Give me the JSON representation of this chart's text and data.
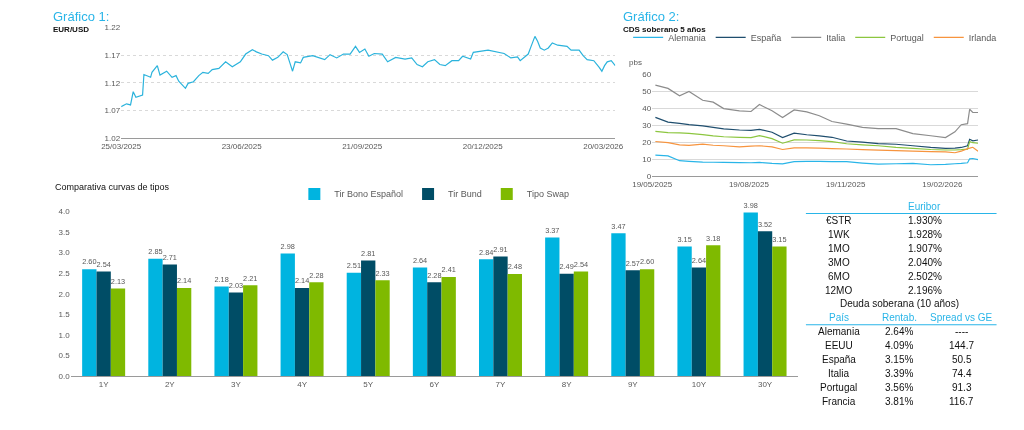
{
  "chart_data": [
    {
      "type": "line",
      "title": "Gráfico 1:",
      "subtitle": "EUR/USD",
      "x": [
        "2025-03-25",
        "2025-03-29",
        "2025-04-01",
        "2025-04-03",
        "2025-04-05",
        "2025-04-10",
        "2025-04-11",
        "2025-04-16",
        "2025-04-17",
        "2025-04-21",
        "2025-04-23",
        "2025-04-28",
        "2025-05-02",
        "2025-05-05",
        "2025-05-07",
        "2025-05-12",
        "2025-05-14",
        "2025-05-18",
        "2025-05-22",
        "2025-05-25",
        "2025-05-29",
        "2025-06-01",
        "2025-06-06",
        "2025-06-11",
        "2025-06-16",
        "2025-06-22",
        "2025-06-26",
        "2025-07-01",
        "2025-07-04",
        "2025-07-08",
        "2025-07-13",
        "2025-07-16",
        "2025-07-20",
        "2025-07-24",
        "2025-07-27",
        "2025-07-29",
        "2025-07-31",
        "2025-08-02",
        "2025-08-06",
        "2025-08-08",
        "2025-08-15",
        "2025-08-24",
        "2025-08-28",
        "2025-09-02",
        "2025-09-07",
        "2025-09-12",
        "2025-09-16",
        "2025-09-19",
        "2025-09-23",
        "2025-09-26",
        "2025-09-30",
        "2025-10-06",
        "2025-10-10",
        "2025-10-16",
        "2025-10-23",
        "2025-10-28",
        "2025-11-01",
        "2025-11-05",
        "2025-11-09",
        "2025-11-14",
        "2025-11-18",
        "2025-11-22",
        "2025-11-27",
        "2025-12-02",
        "2025-12-05",
        "2025-12-11",
        "2025-12-13",
        "2025-12-24",
        "2026-01-05",
        "2026-01-10",
        "2026-01-15",
        "2026-01-17",
        "2026-01-23",
        "2026-01-25",
        "2026-01-28",
        "2026-01-30",
        "2026-02-01",
        "2026-02-04",
        "2026-02-07",
        "2026-02-10",
        "2026-02-14",
        "2026-02-21",
        "2026-02-24",
        "2026-03-02",
        "2026-03-05",
        "2026-03-08",
        "2026-03-13",
        "2026-03-17",
        "2026-03-19",
        "2026-03-21",
        "2026-03-23",
        "2026-03-26",
        "2026-03-29"
      ],
      "series": [
        {
          "color": "#2bb3dc",
          "values": [
            1.077,
            1.082,
            1.08,
            1.104,
            1.094,
            1.098,
            1.135,
            1.13,
            1.139,
            1.151,
            1.134,
            1.141,
            1.13,
            1.133,
            1.123,
            1.11,
            1.119,
            1.122,
            1.133,
            1.139,
            1.137,
            1.144,
            1.146,
            1.158,
            1.149,
            1.158,
            1.172,
            1.18,
            1.176,
            1.172,
            1.169,
            1.161,
            1.166,
            1.176,
            1.171,
            1.156,
            1.141,
            1.158,
            1.156,
            1.166,
            1.169,
            1.162,
            1.171,
            1.165,
            1.172,
            1.172,
            1.186,
            1.175,
            1.181,
            1.168,
            1.173,
            1.172,
            1.158,
            1.166,
            1.163,
            1.165,
            1.153,
            1.149,
            1.158,
            1.162,
            1.153,
            1.151,
            1.16,
            1.16,
            1.168,
            1.163,
            1.175,
            1.179,
            1.173,
            1.165,
            1.167,
            1.16,
            1.172,
            1.185,
            1.204,
            1.195,
            1.183,
            1.179,
            1.183,
            1.192,
            1.188,
            1.186,
            1.179,
            1.179,
            1.169,
            1.162,
            1.16,
            1.148,
            1.141,
            1.151,
            1.158,
            1.16,
            1.151
          ]
        }
      ],
      "xlim": [
        "2025-03-25",
        "2026-03-29"
      ],
      "xticks": [
        {
          "value": "2025-03-25",
          "label": "25/03/2025"
        },
        {
          "value": "2025-06-23",
          "label": "23/06/2025"
        },
        {
          "value": "2025-09-21",
          "label": "21/09/2025"
        },
        {
          "value": "2025-12-20",
          "label": "20/12/2025"
        },
        {
          "value": "2026-03-20",
          "label": "20/03/2026"
        }
      ],
      "ylim": [
        1.02,
        1.22
      ],
      "yticks": [
        1.02,
        1.07,
        1.12,
        1.17,
        1.22
      ],
      "grid": "y"
    },
    {
      "type": "line",
      "title": "Gráfico 2:",
      "subtitle": "CDS soberano 5 años",
      "ylabel": "pbs",
      "x": [
        "2025-05-22",
        "2025-06-03",
        "2025-06-14",
        "2025-06-23",
        "2025-07-06",
        "2025-07-16",
        "2025-07-26",
        "2025-08-10",
        "2025-08-21",
        "2025-08-29",
        "2025-09-10",
        "2025-09-20",
        "2025-10-01",
        "2025-10-13",
        "2025-10-25",
        "2025-11-06",
        "2025-11-20",
        "2025-12-05",
        "2025-12-20",
        "2026-01-06",
        "2026-01-22",
        "2026-02-08",
        "2026-02-22",
        "2026-03-03",
        "2026-03-09",
        "2026-03-15",
        "2026-03-17",
        "2026-03-20",
        "2026-03-25"
      ],
      "series": [
        {
          "name": "Alemania",
          "color": "#29b5e8",
          "values": [
            12.5,
            12,
            9.2,
            8.8,
            8.4,
            8.3,
            8.2,
            8.1,
            8,
            8.2,
            7.6,
            7.3,
            8.7,
            8.8,
            8.8,
            8.7,
            8.6,
            7.8,
            7.2,
            7.4,
            7.6,
            6.8,
            7,
            7.4,
            7.6,
            8,
            10.3,
            10.5,
            9.8
          ]
        },
        {
          "name": "España",
          "color": "#1f4e6e",
          "values": [
            34.7,
            31.9,
            31.2,
            30.5,
            29.7,
            28.8,
            28,
            27.3,
            27.1,
            27.7,
            26,
            22.8,
            25.4,
            24.5,
            23.8,
            23,
            20.8,
            20.1,
            19.3,
            18.9,
            18,
            17,
            16.5,
            16.6,
            17,
            18,
            21.8,
            20.9,
            21.4
          ]
        },
        {
          "name": "Italia",
          "color": "#8c8c8c",
          "values": [
            53.7,
            51.8,
            47.5,
            50,
            44.8,
            43.7,
            39.9,
            38.6,
            38.2,
            42.3,
            38.6,
            34.7,
            39.1,
            38,
            35.7,
            32.3,
            30.7,
            28.8,
            28.1,
            28.1,
            25.2,
            23.9,
            22.8,
            26.2,
            30.4,
            31,
            39.5,
            37.6,
            37.6
          ]
        },
        {
          "name": "Portugal",
          "color": "#8cc63f",
          "values": [
            26.5,
            25.8,
            25.6,
            25.3,
            24.6,
            23.8,
            23.3,
            23,
            22.8,
            24,
            22.2,
            19.5,
            21.5,
            21.4,
            21,
            20.4,
            19.2,
            18.5,
            18,
            17,
            16.5,
            15.8,
            15.5,
            15.5,
            15.7,
            16,
            20.5,
            19.8,
            19.5
          ]
        },
        {
          "name": "Irlanda",
          "color": "#f7943e",
          "values": [
            20.5,
            19.8,
            18.5,
            18.2,
            19,
            18.3,
            18,
            17.3,
            17.8,
            18,
            17.3,
            15.8,
            16.7,
            16.7,
            16.6,
            16.3,
            16.1,
            15.7,
            15.4,
            15.1,
            14.8,
            14.5,
            14.4,
            13.9,
            14.8,
            16.3,
            16.6,
            17.1,
            14.8
          ]
        }
      ],
      "xlim": [
        "2025-05-19",
        "2026-03-25"
      ],
      "xticks": [
        {
          "value": "2025-05-19",
          "label": "19/05/2025"
        },
        {
          "value": "2025-08-19",
          "label": "19/08/2025"
        },
        {
          "value": "2025-11-19",
          "label": "19/11/2025"
        },
        {
          "value": "2026-02-19",
          "label": "19/02/2026"
        }
      ],
      "ylim": [
        0,
        60
      ],
      "yticks": [
        0,
        10,
        20,
        30,
        40,
        50,
        60
      ],
      "grid": "y",
      "legend": "top"
    },
    {
      "type": "bar",
      "title": "Comparativa curvas de tipos",
      "categories": [
        "1Y",
        "2Y",
        "3Y",
        "4Y",
        "5Y",
        "6Y",
        "7Y",
        "8Y",
        "9Y",
        "10Y",
        "30Y"
      ],
      "series": [
        {
          "name": "Tir Bono Español",
          "color": "#00b4e0",
          "values": [
            2.6,
            2.85,
            2.18,
            2.98,
            2.51,
            2.64,
            2.84,
            3.37,
            3.47,
            3.15,
            3.98
          ],
          "value_labels": [
            "2.60",
            "2.85",
            "2.18",
            "2.98",
            "2.51",
            "2.64",
            "2.84",
            "3.37",
            "3.47",
            "3.15",
            "3.98"
          ]
        },
        {
          "name": "Tir Bund",
          "color": "#004d66",
          "values": [
            2.54,
            2.71,
            2.03,
            2.14,
            2.81,
            2.28,
            2.91,
            2.49,
            2.57,
            2.64,
            3.52
          ],
          "value_labels": [
            "2.54",
            "2.71",
            "2.03",
            "2.14",
            "2.81",
            "2.28",
            "2.91",
            "2.49",
            "2.57",
            "2.64",
            "3.52"
          ]
        },
        {
          "name": "Tipo Swap",
          "color": "#7fba00",
          "values": [
            2.13,
            2.14,
            2.21,
            2.28,
            2.33,
            2.41,
            2.48,
            2.54,
            2.6,
            3.18,
            3.15
          ],
          "value_labels": [
            "2.13",
            "2.14",
            "2.21",
            "2.28",
            "2.33",
            "2.41",
            "2.48",
            "2.54",
            "2.60",
            "3.18",
            "3.15"
          ]
        }
      ],
      "ylim": [
        0,
        4.0
      ],
      "yticks": [
        {
          "value": 0,
          "label": "0.0"
        },
        {
          "value": 0.5,
          "label": "0.5"
        },
        {
          "value": 1,
          "label": "1.0"
        },
        {
          "value": 1.5,
          "label": "1.5"
        },
        {
          "value": 2,
          "label": "2.0"
        },
        {
          "value": 2.5,
          "label": "2.5"
        },
        {
          "value": 3,
          "label": "3.0"
        },
        {
          "value": 3.5,
          "label": "3.5"
        },
        {
          "value": 4,
          "label": "4.0"
        }
      ],
      "legend": "top"
    },
    {
      "type": "other",
      "annotations": [
        "Euribor",
        "€STR",
        "1.930%",
        "1WK",
        "1.928%",
        "1MO",
        "1.907%",
        "3MO",
        "2.040%",
        "6MO",
        "2.502%",
        "12MO",
        "2.196%",
        "Deuda soberana (10 años)",
        "País",
        "Rentab.",
        "Spread vs GE",
        "Alemania",
        "2.64%",
        "----",
        "EEUU",
        "4.09%",
        "144.7",
        "España",
        "3.15%",
        "50.5",
        "Italia",
        "3.39%",
        "74.4",
        "Portugal",
        "3.56%",
        "91.3",
        "Francia",
        "3.81%",
        "116.7"
      ]
    }
  ]
}
